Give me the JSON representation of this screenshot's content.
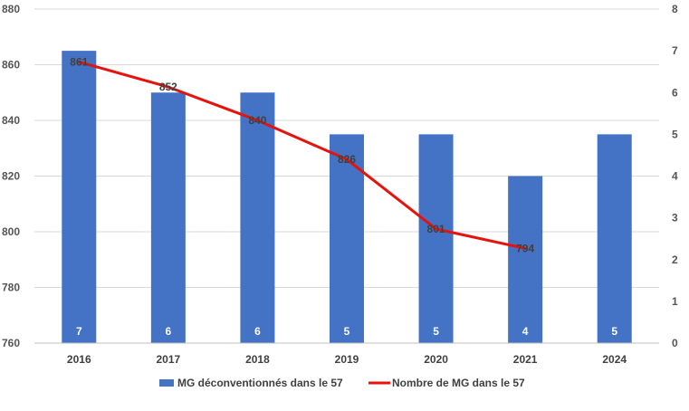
{
  "chart_data": {
    "type": "bar",
    "categories": [
      "2016",
      "2017",
      "2018",
      "2019",
      "2020",
      "2021",
      "2024"
    ],
    "series": [
      {
        "name": "MG déconventionnés dans le 57",
        "kind": "bar",
        "axis": "right",
        "values": [
          7,
          6,
          6,
          5,
          5,
          4,
          5
        ],
        "color": "#4472C4"
      },
      {
        "name": "Nombre de MG dans le 57",
        "kind": "line",
        "axis": "left",
        "values": [
          861,
          852,
          840,
          826,
          801,
          794,
          null
        ],
        "color": "#E8120C"
      }
    ],
    "y_left": {
      "ylim": [
        760,
        880
      ],
      "ticks": [
        "760",
        "780",
        "800",
        "820",
        "840",
        "860",
        "880"
      ]
    },
    "y_right": {
      "ylim": [
        0,
        8
      ],
      "ticks": [
        "0",
        "1",
        "2",
        "3",
        "4",
        "5",
        "6",
        "7",
        "8"
      ]
    },
    "grid": true,
    "legend": "bottom"
  }
}
